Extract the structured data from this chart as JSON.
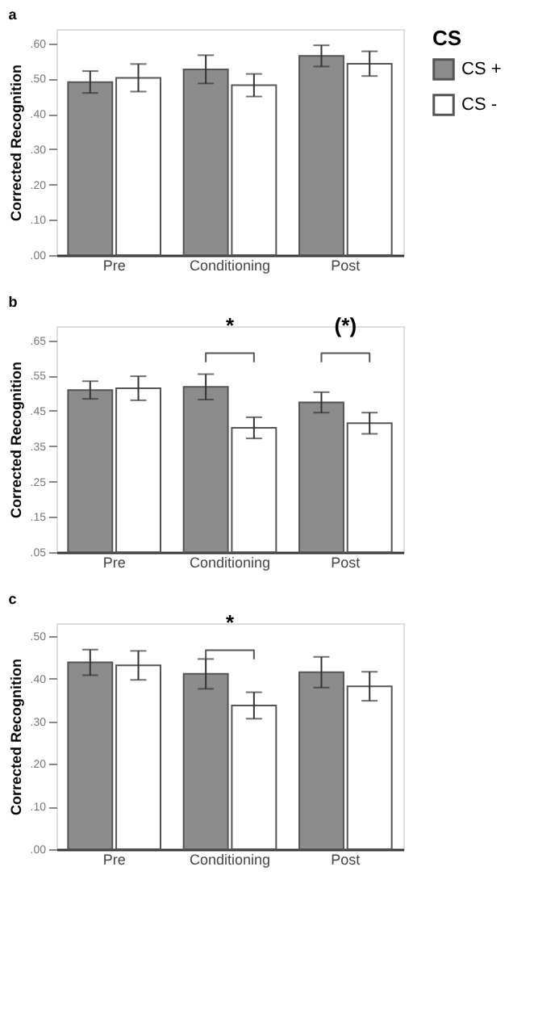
{
  "chart_data": [
    {
      "type": "bar",
      "title": "a",
      "ylabel": "Corrected Recognition",
      "legend_title": "CS",
      "legend": "right",
      "grid": false,
      "categories": [
        "Pre",
        "Conditioning",
        "Post"
      ],
      "series": [
        {
          "name": "CS +",
          "color": "#8c8c8c",
          "values": [
            0.49,
            0.526,
            0.564
          ],
          "errors": [
            0.031,
            0.04,
            0.03
          ]
        },
        {
          "name": "CS -",
          "color": "#ffffff",
          "values": [
            0.502,
            0.481,
            0.542
          ],
          "errors": [
            0.039,
            0.032,
            0.035
          ]
        }
      ],
      "ylim": [
        0,
        0.64
      ],
      "yticks": [
        {
          "value": 0,
          "label": ".00"
        },
        {
          "value": 0.1,
          "label": ".10"
        },
        {
          "value": 0.2,
          "label": ".20"
        },
        {
          "value": 0.3,
          "label": ".30"
        },
        {
          "value": 0.4,
          "label": ".40"
        },
        {
          "value": 0.5,
          "label": ".50"
        },
        {
          "value": 0.6,
          "label": ".60"
        }
      ]
    },
    {
      "type": "bar",
      "title": "b",
      "ylabel": "Corrected Recognition",
      "legend": false,
      "grid": false,
      "categories": [
        "Pre",
        "Conditioning",
        "Post"
      ],
      "series": [
        {
          "color": "#8c8c8c",
          "values": [
            0.509,
            0.518,
            0.474
          ],
          "errors": [
            0.025,
            0.036,
            0.029
          ]
        },
        {
          "color": "#ffffff",
          "values": [
            0.514,
            0.402,
            0.415
          ],
          "errors": [
            0.034,
            0.03,
            0.03
          ]
        }
      ],
      "annotations": [
        "*",
        "(*)"
      ],
      "ylim": [
        0.05,
        0.69
      ],
      "yticks": [
        {
          "value": 0.05,
          "label": ".05"
        },
        {
          "value": 0.15,
          "label": ".15"
        },
        {
          "value": 0.25,
          "label": ".25"
        },
        {
          "value": 0.35,
          "label": ".35"
        },
        {
          "value": 0.45,
          "label": ".45"
        },
        {
          "value": 0.55,
          "label": ".55"
        },
        {
          "value": 0.65,
          "label": ".65"
        }
      ]
    },
    {
      "type": "bar",
      "title": "c",
      "ylabel": "Corrected Recognition",
      "legend": false,
      "grid": false,
      "categories": [
        "Pre",
        "Conditioning",
        "Post"
      ],
      "series": [
        {
          "color": "#8c8c8c",
          "values": [
            0.438,
            0.411,
            0.415
          ],
          "errors": [
            0.03,
            0.035,
            0.036
          ]
        },
        {
          "color": "#ffffff",
          "values": [
            0.431,
            0.337,
            0.382
          ],
          "errors": [
            0.034,
            0.031,
            0.034
          ]
        }
      ],
      "annotations": [
        "*"
      ],
      "ylim": [
        0,
        0.53
      ],
      "yticks": [
        {
          "value": 0,
          "label": ".00"
        },
        {
          "value": 0.1,
          "label": ".10"
        },
        {
          "value": 0.2,
          "label": ".20"
        },
        {
          "value": 0.3,
          "label": ".30"
        },
        {
          "value": 0.4,
          "label": ".40"
        },
        {
          "value": 0.5,
          "label": ".50"
        }
      ]
    }
  ]
}
